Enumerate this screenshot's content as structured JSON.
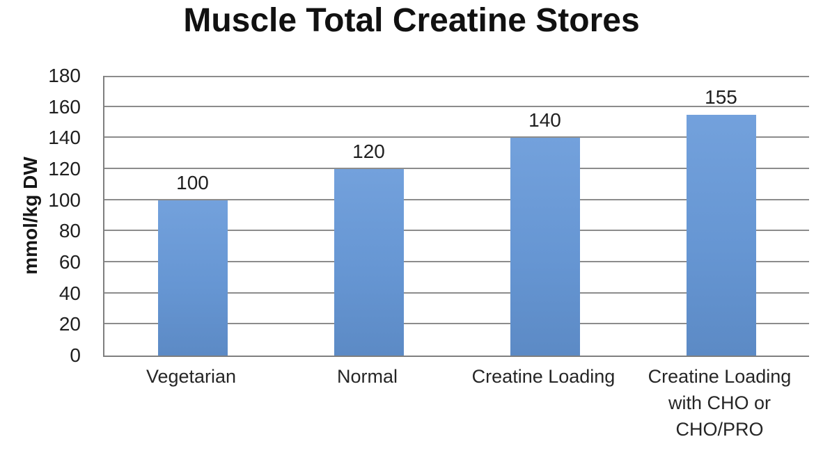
{
  "chart_data": {
    "type": "bar",
    "title": "Muscle Total Creatine Stores",
    "xlabel": "",
    "ylabel": "mmol/kg DW",
    "categories": [
      "Vegetarian",
      "Normal",
      "Creatine Loading",
      "Creatine Loading with CHO or CHO/PRO"
    ],
    "values": [
      100,
      120,
      140,
      155
    ],
    "data_labels": [
      "100",
      "120",
      "140",
      "155"
    ],
    "ylim": [
      0,
      180
    ],
    "yticks": [
      0,
      20,
      40,
      60,
      80,
      100,
      120,
      140,
      160,
      180
    ],
    "grid": true,
    "legend": "none",
    "colors": {
      "bar_top": "#73a1dc",
      "bar_bottom": "#5c8ac5",
      "gridline": "#8c8c8c",
      "axis": "#7f7f7f",
      "text": "#1f1f1f",
      "title_text": "#111111",
      "background": "#ffffff"
    }
  }
}
